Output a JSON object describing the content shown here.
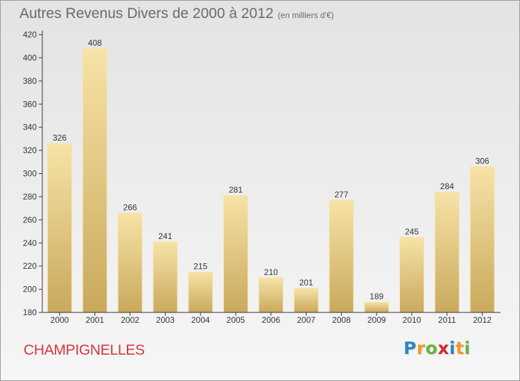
{
  "title": "Autres Revenus Divers de 2000 à 2012",
  "title_unit": "(en milliers d'€)",
  "location": "CHAMPIGNELLES",
  "logo": {
    "letters": [
      "P",
      "r",
      "o",
      "x",
      "i",
      "t",
      "i"
    ],
    "colors": [
      "#2e86c9",
      "#f29a1f",
      "#6ab33f",
      "#d4262b",
      "#2e86c9",
      "#f29a1f",
      "#6ab33f"
    ]
  },
  "colors": {
    "bar_light": "#f7e3a6",
    "bar_dark": "#c9a95c",
    "location_text": "#d2383e",
    "axis": "#333333"
  },
  "chart_data": {
    "type": "bar",
    "title": "Autres Revenus Divers de 2000 à 2012",
    "subtitle": "(en milliers d'€)",
    "categories": [
      "2000",
      "2001",
      "2002",
      "2003",
      "2004",
      "2005",
      "2006",
      "2007",
      "2008",
      "2009",
      "2010",
      "2011",
      "2012"
    ],
    "values": [
      326,
      408,
      266,
      241,
      215,
      281,
      210,
      201,
      277,
      189,
      245,
      284,
      306
    ],
    "ylim": [
      180,
      420
    ],
    "yticks": [
      180,
      200,
      220,
      240,
      260,
      280,
      300,
      320,
      340,
      360,
      380,
      400,
      420
    ],
    "xlabel": "",
    "ylabel": "",
    "grid": false,
    "data_labels": true
  }
}
